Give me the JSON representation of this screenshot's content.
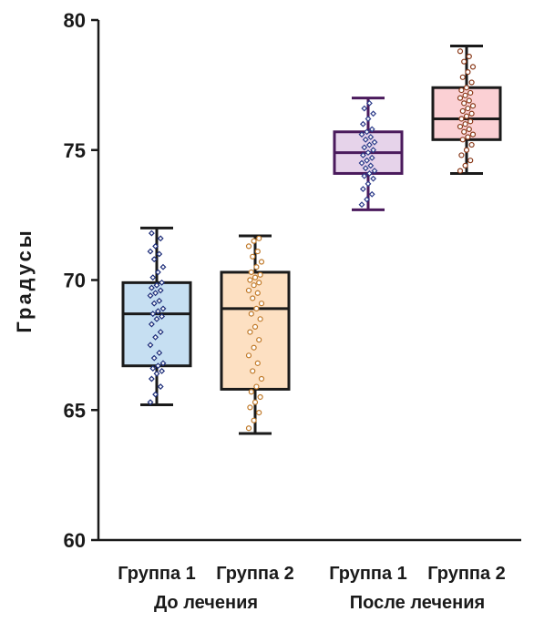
{
  "chart_data": {
    "type": "box",
    "ylabel": "Градусы",
    "xlabel": "",
    "ylim": [
      60,
      80
    ],
    "yticks": [
      60,
      65,
      70,
      75,
      80
    ],
    "ytick_labels": [
      "60",
      "65",
      "70",
      "75",
      "80"
    ],
    "groups": [
      {
        "label": "До лечения",
        "categories": [
          "Группа 1",
          "Группа 2"
        ]
      },
      {
        "label": "После лечения",
        "categories": [
          "Группа 1",
          "Группа 2"
        ]
      }
    ],
    "series": [
      {
        "category": "Группа 1",
        "group": "До лечения",
        "fill": "#c6dff2",
        "edge": "#1a1a1a",
        "point_color": "#1f2f7a",
        "marker": "diamond",
        "min": 65.2,
        "q1": 66.7,
        "median": 68.7,
        "q3": 69.9,
        "max": 72.0,
        "points": [
          65.3,
          65.6,
          65.9,
          66.2,
          66.4,
          66.5,
          66.6,
          66.7,
          66.8,
          67.0,
          67.2,
          67.5,
          67.8,
          68.0,
          68.3,
          68.5,
          68.6,
          68.7,
          68.8,
          68.9,
          69.1,
          69.2,
          69.4,
          69.5,
          69.6,
          69.7,
          69.8,
          69.9,
          70.1,
          70.3,
          70.5,
          70.8,
          71.0,
          71.1,
          71.3,
          71.6,
          71.8
        ]
      },
      {
        "category": "Группа 2",
        "group": "До лечения",
        "fill": "#fde0c2",
        "edge": "#1a1a1a",
        "point_color": "#c07a2a",
        "marker": "circle",
        "min": 64.1,
        "q1": 65.8,
        "median": 68.9,
        "q3": 70.3,
        "max": 71.7,
        "points": [
          64.3,
          64.6,
          64.9,
          65.1,
          65.3,
          65.5,
          65.7,
          65.9,
          66.2,
          66.5,
          66.8,
          67.1,
          67.4,
          67.7,
          68.0,
          68.2,
          68.5,
          68.7,
          68.9,
          69.1,
          69.3,
          69.5,
          69.6,
          69.8,
          69.9,
          70.0,
          70.1,
          70.2,
          70.3,
          70.5,
          70.7,
          70.9,
          71.1,
          71.3,
          71.5,
          71.6
        ]
      },
      {
        "category": "Группа 1",
        "group": "После лечения",
        "fill": "#e6d3ea",
        "edge": "#4a1a5c",
        "point_color": "#2d3c8a",
        "marker": "diamond",
        "min": 72.7,
        "q1": 74.1,
        "median": 74.9,
        "q3": 75.7,
        "max": 77.0,
        "points": [
          72.9,
          73.1,
          73.3,
          73.5,
          73.7,
          73.9,
          74.0,
          74.1,
          74.2,
          74.3,
          74.4,
          74.5,
          74.6,
          74.7,
          74.8,
          74.9,
          75.0,
          75.1,
          75.2,
          75.3,
          75.4,
          75.5,
          75.6,
          75.7,
          75.8,
          76.0,
          76.2,
          76.4,
          76.6,
          76.8
        ]
      },
      {
        "category": "Группа 2",
        "group": "После лечения",
        "fill": "#fbd0d4",
        "edge": "#1a1a1a",
        "point_color": "#8a3a1a",
        "marker": "circle",
        "min": 74.1,
        "q1": 75.4,
        "median": 76.2,
        "q3": 77.4,
        "max": 79.0,
        "points": [
          74.2,
          74.4,
          74.6,
          74.8,
          75.0,
          75.2,
          75.4,
          75.5,
          75.6,
          75.7,
          75.8,
          75.9,
          76.0,
          76.1,
          76.2,
          76.3,
          76.4,
          76.5,
          76.6,
          76.7,
          76.8,
          76.9,
          77.0,
          77.1,
          77.2,
          77.3,
          77.4,
          77.6,
          77.8,
          78.0,
          78.2,
          78.4,
          78.6,
          78.8
        ]
      }
    ],
    "grid": false,
    "legend": "none"
  }
}
